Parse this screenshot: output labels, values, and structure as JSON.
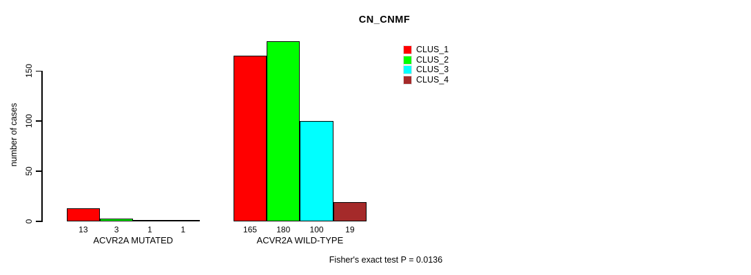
{
  "chart_data": {
    "type": "bar",
    "title": "CN_CNMF",
    "ylabel": "number of cases",
    "xlabel": "",
    "categories": [
      "ACVR2A MUTATED",
      "ACVR2A WILD-TYPE"
    ],
    "series": [
      {
        "name": "CLUS_1",
        "color": "#ff0000",
        "values": [
          13,
          165
        ]
      },
      {
        "name": "CLUS_2",
        "color": "#00ff00",
        "values": [
          3,
          180
        ]
      },
      {
        "name": "CLUS_3",
        "color": "#00ffff",
        "values": [
          1,
          100
        ]
      },
      {
        "name": "CLUS_4",
        "color": "#a52a2a",
        "values": [
          1,
          19
        ]
      }
    ],
    "yticks": [
      0,
      50,
      100,
      150
    ],
    "ylim": [
      0,
      185
    ],
    "grid": "off",
    "bar_value_labels_shown": true,
    "legend_position": "top-right",
    "annotation": "Fisher's exact test P = 0.0136"
  }
}
